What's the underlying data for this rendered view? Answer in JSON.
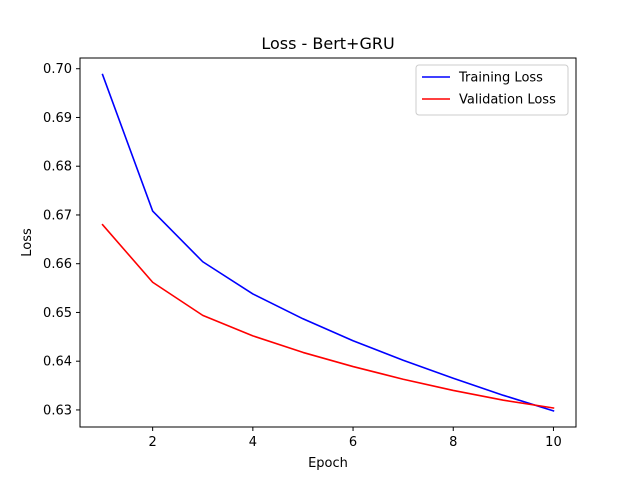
{
  "chart_data": {
    "type": "line",
    "title": "Loss - Bert+GRU",
    "xlabel": "Epoch",
    "ylabel": "Loss",
    "xlim": [
      0.55,
      10.45
    ],
    "ylim": [
      0.6265,
      0.7022
    ],
    "xticks": [
      2,
      4,
      6,
      8,
      10
    ],
    "yticks": [
      0.63,
      0.64,
      0.65,
      0.66,
      0.67,
      0.68,
      0.69,
      0.7
    ],
    "ytick_labels": [
      "0.63",
      "0.64",
      "0.65",
      "0.66",
      "0.67",
      "0.68",
      "0.69",
      "0.70"
    ],
    "grid": false,
    "legend_position": "top-right",
    "x": [
      1,
      2,
      3,
      4,
      5,
      6,
      7,
      8,
      9,
      10
    ],
    "series": [
      {
        "name": "Training Loss",
        "color": "#0000ff",
        "values": [
          0.6988,
          0.6708,
          0.6604,
          0.6538,
          0.6487,
          0.6442,
          0.6402,
          0.6365,
          0.633,
          0.6298
        ]
      },
      {
        "name": "Validation Loss",
        "color": "#ff0000",
        "values": [
          0.668,
          0.6562,
          0.6494,
          0.6452,
          0.6418,
          0.6389,
          0.6363,
          0.634,
          0.632,
          0.6304
        ]
      }
    ]
  }
}
